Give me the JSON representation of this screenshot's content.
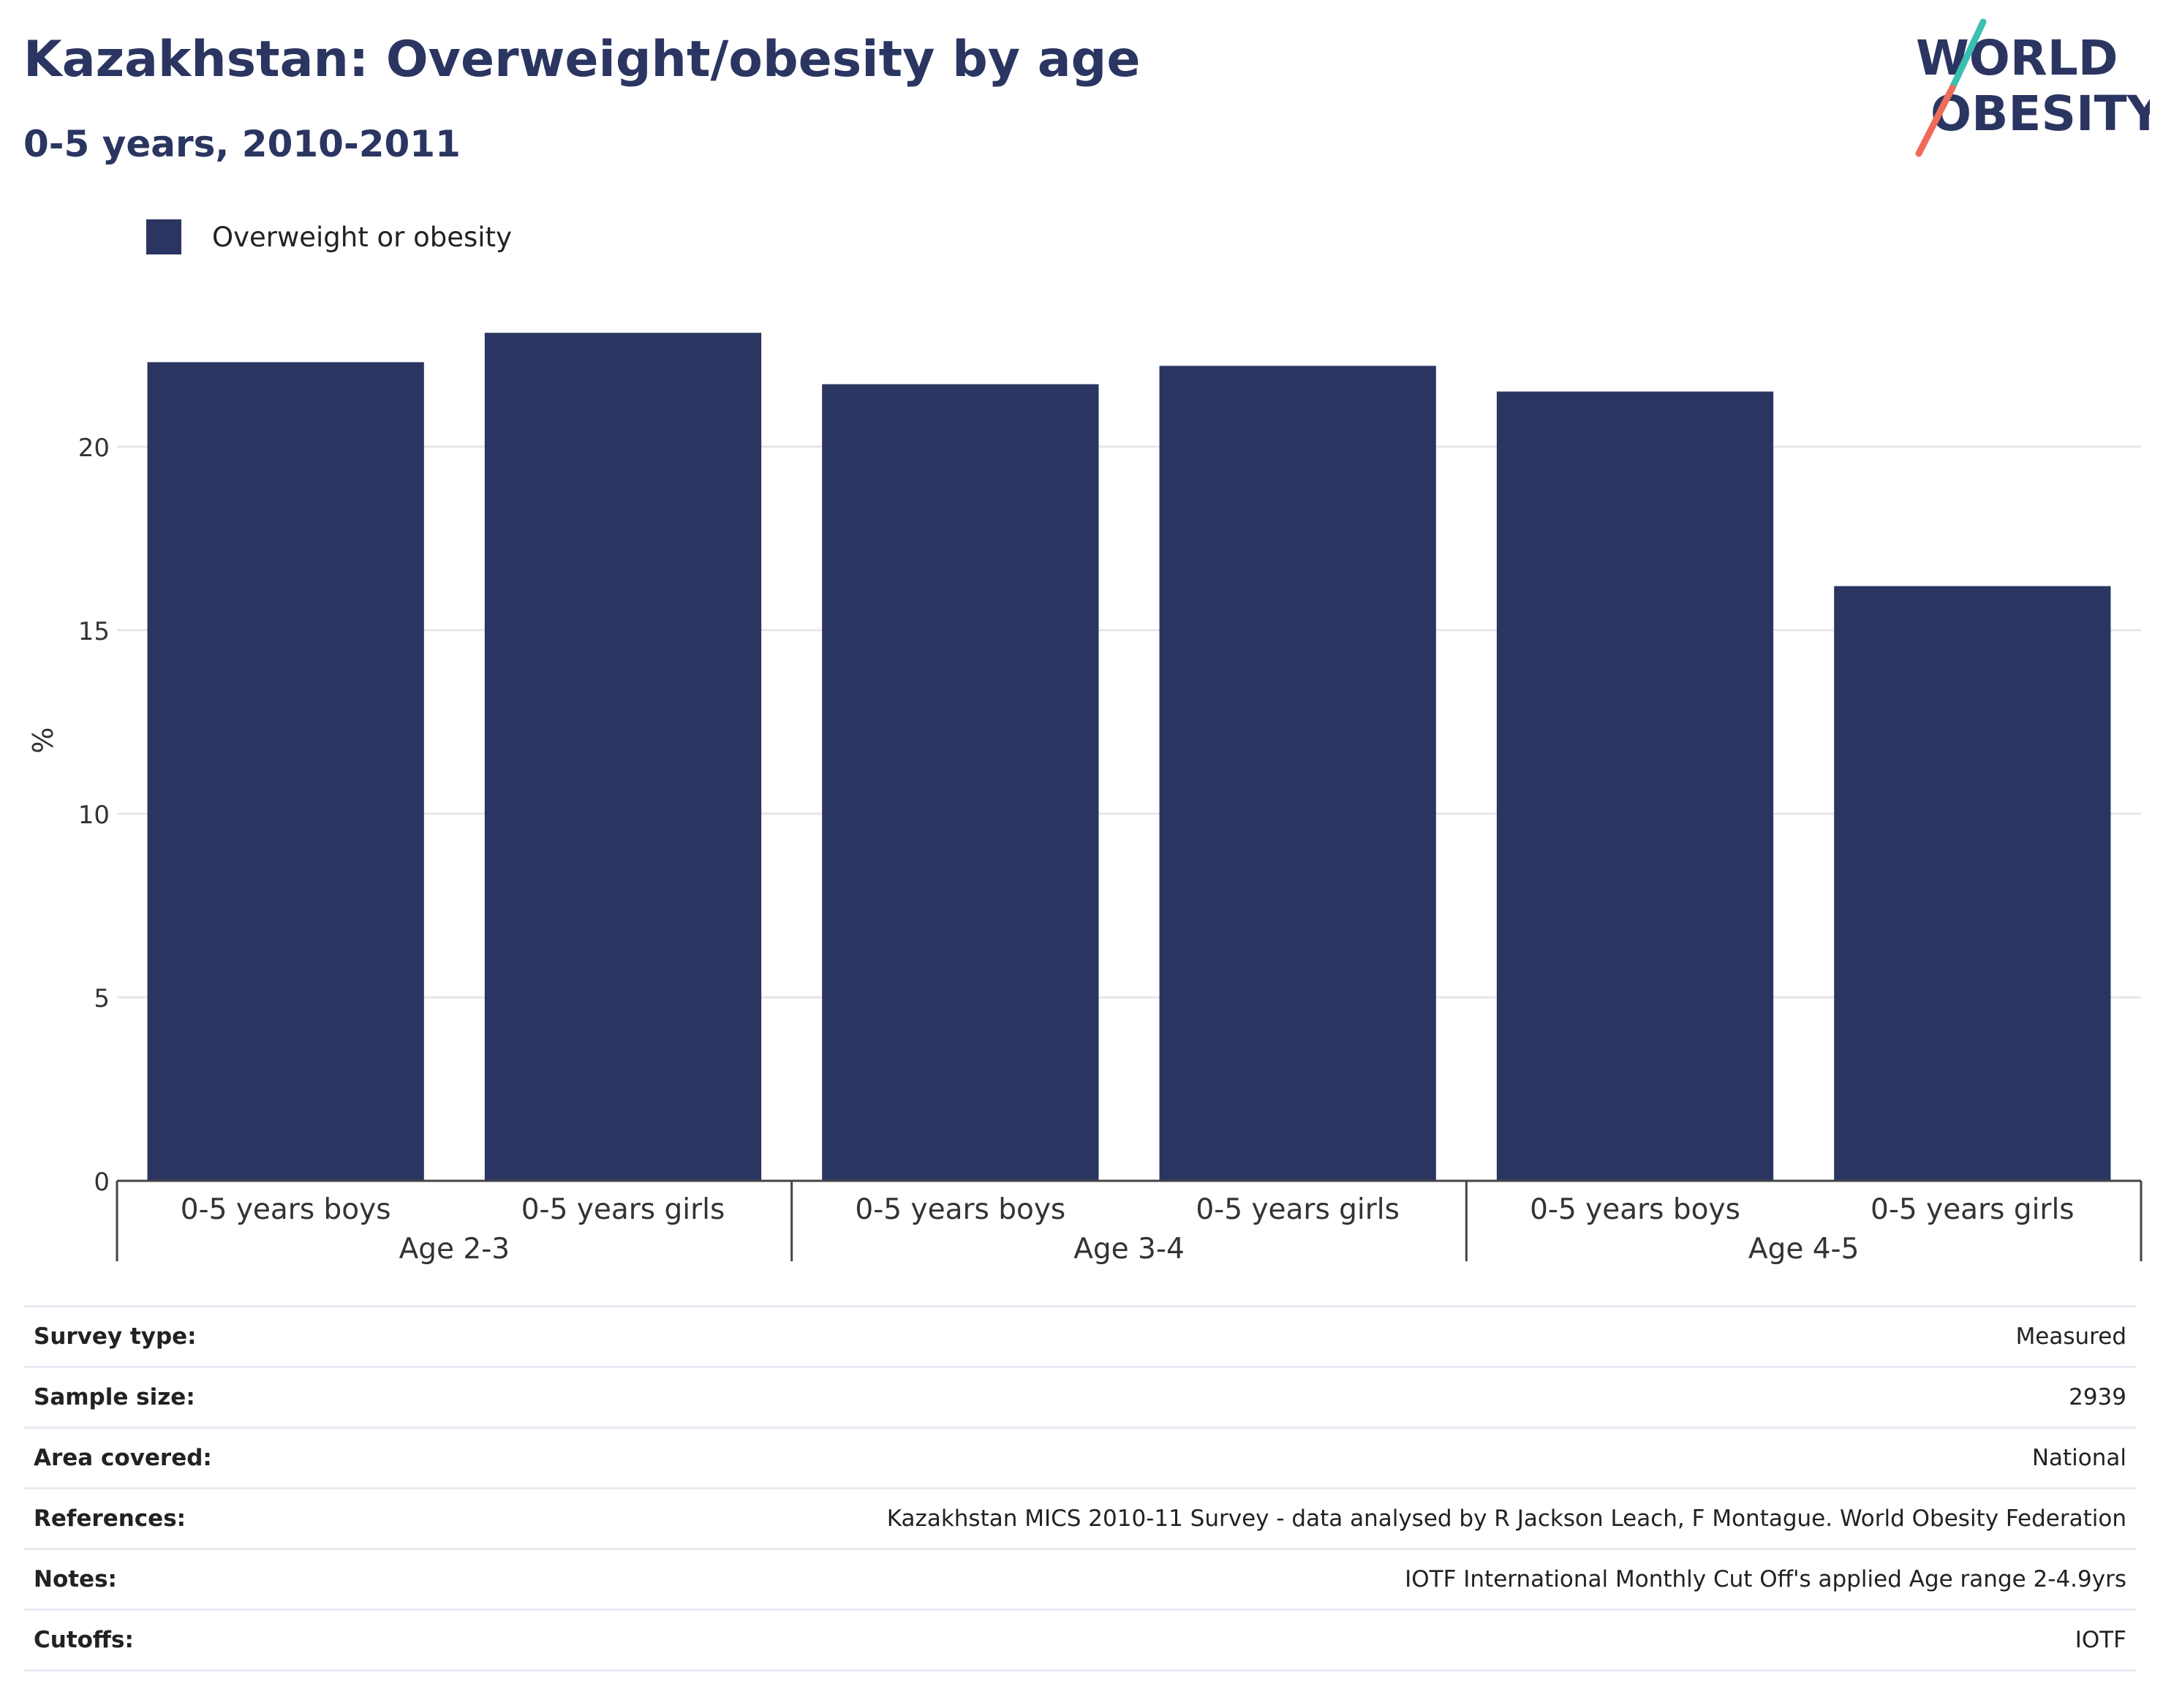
{
  "header": {
    "title": "Kazakhstan: Overweight/obesity by age",
    "subtitle": "0-5 years, 2010-2011"
  },
  "logo": {
    "line1": "WORLD",
    "line2": "OBESITY",
    "colors": {
      "text": "#2b3561",
      "slash_top": "#3bbfb0",
      "slash_bottom": "#ef6b5a"
    }
  },
  "legend": {
    "label": "Overweight or obesity",
    "color": "#2b3561"
  },
  "chart_data": {
    "type": "bar",
    "title": "Kazakhstan: Overweight/obesity by age",
    "subtitle": "0-5 years, 2010-2011",
    "xlabel": "",
    "ylabel": "%",
    "ylim": [
      0,
      24
    ],
    "yticks": [
      0,
      5,
      10,
      15,
      20
    ],
    "grid": true,
    "legend_position": "top-left",
    "bar_color": "#2b3561",
    "groups": [
      {
        "label": "Age 2-3",
        "categories": [
          "0-5 years boys",
          "0-5 years girls"
        ]
      },
      {
        "label": "Age 3-4",
        "categories": [
          "0-5 years boys",
          "0-5 years girls"
        ]
      },
      {
        "label": "Age 4-5",
        "categories": [
          "0-5 years boys",
          "0-5 years girls"
        ]
      }
    ],
    "series": [
      {
        "name": "Overweight or obesity",
        "values": [
          22.3,
          23.1,
          21.7,
          22.2,
          21.5,
          16.2
        ]
      }
    ]
  },
  "info": [
    {
      "label": "Survey type:",
      "value": "Measured"
    },
    {
      "label": "Sample size:",
      "value": "2939"
    },
    {
      "label": "Area covered:",
      "value": "National"
    },
    {
      "label": "References:",
      "value": "Kazakhstan MICS 2010-11 Survey - data analysed by R Jackson Leach, F Montague. World Obesity Federation"
    },
    {
      "label": "Notes:",
      "value": "IOTF International Monthly Cut Off's applied Age range 2-4.9yrs"
    },
    {
      "label": "Cutoffs:",
      "value": "IOTF"
    }
  ]
}
